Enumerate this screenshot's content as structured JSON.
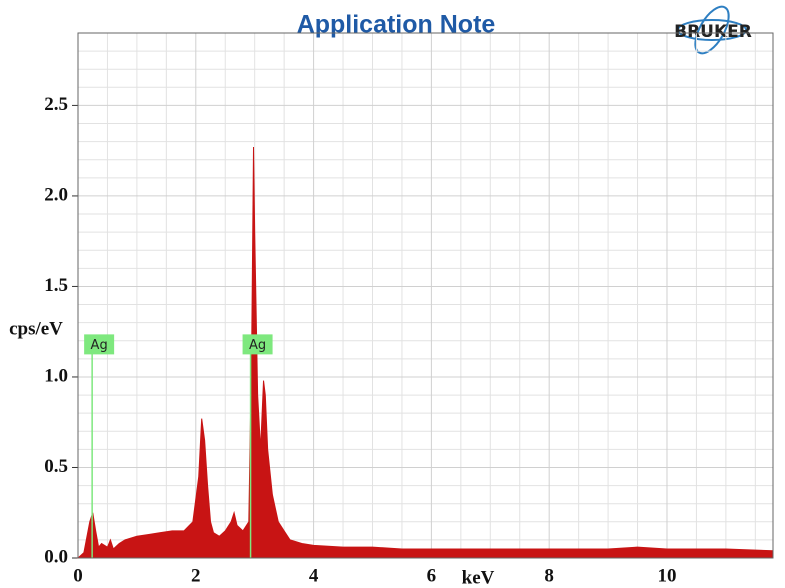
{
  "header": {
    "title": "Application Note",
    "logo": "BRUKER"
  },
  "chart_data": {
    "type": "area",
    "x_label": "keV",
    "y_label": "cps/eV",
    "color": "#c81414",
    "marker_color": "#7ee87e",
    "xlim": [
      0,
      11.8
    ],
    "ylim": [
      0,
      2.9
    ],
    "xticks": [
      0,
      2,
      4,
      6,
      8,
      10
    ],
    "yticks": [
      {
        "value": 0,
        "label": "0.0"
      },
      0.5,
      {
        "value": 1,
        "label": "1.0"
      },
      1.5,
      {
        "value": 2,
        "label": "2.0"
      },
      2.5
    ],
    "xminorticks": [
      0.5,
      1,
      1.5,
      2.5,
      3,
      3.5,
      4.5,
      5,
      5.5,
      6.5,
      7,
      7.5,
      8.5,
      9,
      9.5,
      10.5,
      11,
      11.5
    ],
    "yminorticks": [
      0.1,
      0.2,
      0.3,
      0.4,
      0.6,
      0.7,
      0.8,
      0.9,
      1.1,
      1.2,
      1.3,
      1.4,
      1.6,
      1.7,
      1.8,
      1.9,
      2.1,
      2.2,
      2.3,
      2.4,
      2.6,
      2.7,
      2.8
    ],
    "grid": true,
    "x": [
      0,
      0.1,
      0.2,
      0.25,
      0.3,
      0.35,
      0.4,
      0.5,
      0.55,
      0.6,
      0.7,
      0.8,
      1.0,
      1.2,
      1.4,
      1.6,
      1.8,
      1.95,
      2.05,
      2.1,
      2.15,
      2.2,
      2.25,
      2.3,
      2.4,
      2.5,
      2.6,
      2.65,
      2.7,
      2.8,
      2.9,
      2.95,
      2.98,
      3.0,
      3.05,
      3.1,
      3.15,
      3.18,
      3.22,
      3.3,
      3.4,
      3.5,
      3.6,
      3.8,
      4.0,
      4.5,
      5.0,
      5.5,
      6.0,
      7.0,
      8.0,
      9.0,
      9.5,
      10.0,
      11.0,
      11.8
    ],
    "values": [
      0,
      0.03,
      0.2,
      0.25,
      0.15,
      0.06,
      0.08,
      0.06,
      0.1,
      0.05,
      0.08,
      0.1,
      0.12,
      0.13,
      0.14,
      0.15,
      0.15,
      0.2,
      0.45,
      0.77,
      0.65,
      0.4,
      0.2,
      0.14,
      0.12,
      0.15,
      0.2,
      0.25,
      0.18,
      0.15,
      0.2,
      1.2,
      2.27,
      1.8,
      0.9,
      0.6,
      0.98,
      0.9,
      0.6,
      0.35,
      0.2,
      0.15,
      0.1,
      0.08,
      0.07,
      0.06,
      0.06,
      0.05,
      0.05,
      0.05,
      0.05,
      0.05,
      0.06,
      0.05,
      0.05,
      0.04
    ],
    "annotations": [
      {
        "x": 0.24,
        "y": 1.18,
        "label": "Ag"
      },
      {
        "x": 2.93,
        "y": 1.18,
        "label": "Ag"
      }
    ]
  }
}
